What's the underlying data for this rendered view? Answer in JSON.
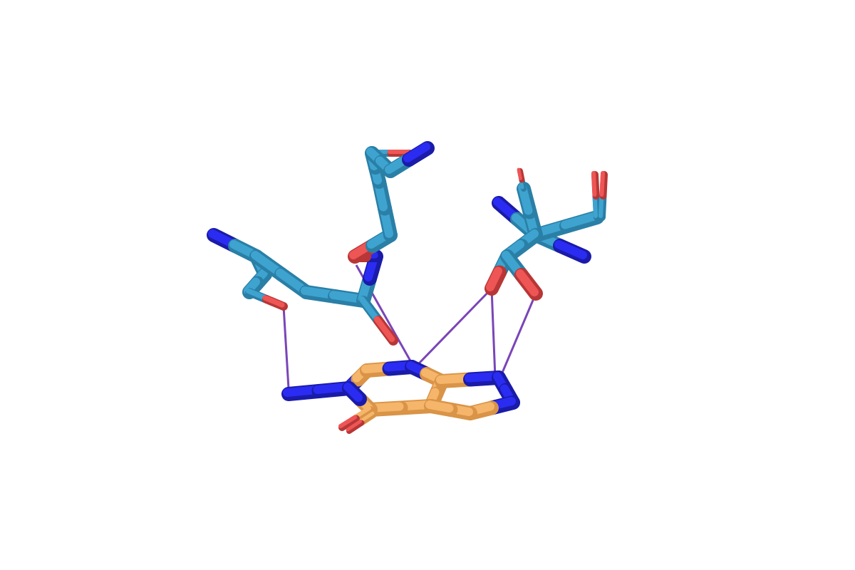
{
  "scene": {
    "background": "#ffffff",
    "render_style": "sticks",
    "colors": {
      "protein_carbon": "#3ea3cf",
      "protein_carbon_dark": "#2a7fa6",
      "ligand_carbon": "#f5b56b",
      "ligand_carbon_dark": "#d99447",
      "nitrogen": "#2a2cf2",
      "nitrogen_dark": "#1a1ba8",
      "oxygen": "#ee5555",
      "oxygen_dark": "#b83636",
      "contact": "#7a45b8"
    },
    "molecules": [
      {
        "name": "residue-left",
        "kind": "protein-residue"
      },
      {
        "name": "residue-center",
        "kind": "protein-residue"
      },
      {
        "name": "residue-right",
        "kind": "protein-residue"
      },
      {
        "name": "ligand-purine",
        "kind": "ligand"
      }
    ],
    "contact_count": 5
  }
}
